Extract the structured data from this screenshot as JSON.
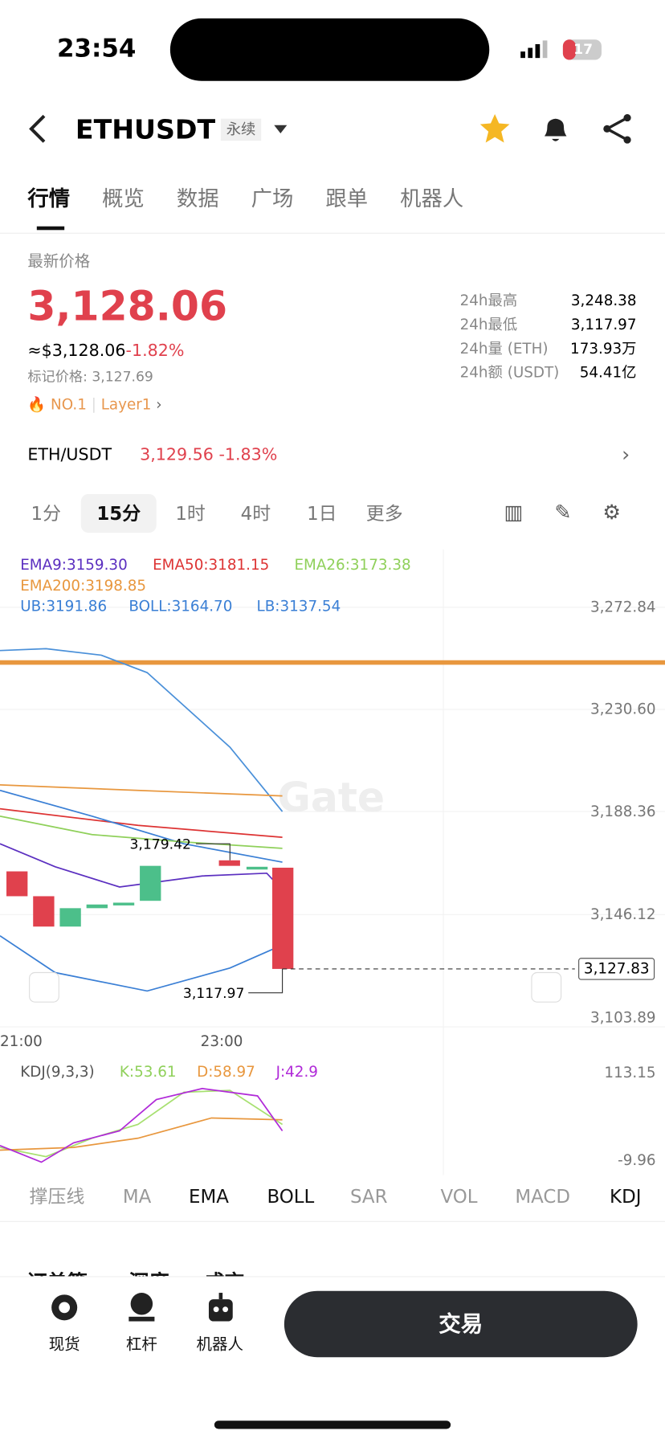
{
  "status": {
    "time": "23:54",
    "battery": "17"
  },
  "header": {
    "symbol": "ETHUSDT",
    "tag": "永续"
  },
  "tabs": [
    "行情",
    "概览",
    "数据",
    "广场",
    "跟单",
    "机器人"
  ],
  "price": {
    "label": "最新价格",
    "last": "3,128.06",
    "usd": "≈$3,128.06",
    "change": "-1.82%",
    "mark": "标记价格: 3,127.69",
    "rank": "NO.1",
    "sector": "Layer1"
  },
  "stats": [
    [
      "24h最高",
      "3,248.38"
    ],
    [
      "24h最低",
      "3,117.97"
    ],
    [
      "24h量 (ETH)",
      "173.93万"
    ],
    [
      "24h额 (USDT)",
      "54.41亿"
    ]
  ],
  "spot": {
    "pair": "ETH/USDT",
    "price": "3,129.56",
    "change": "-1.83%"
  },
  "intervals": [
    "1分",
    "15分",
    "1时",
    "4时",
    "1日",
    "更多"
  ],
  "chart": {
    "ema": [
      "EMA9:3159.30",
      "EMA50:3181.15",
      "EMA26:3173.38",
      "EMA200:3198.85"
    ],
    "boll": [
      "UB:3191.86",
      "BOLL:3164.70",
      "LB:3137.54"
    ],
    "yaxis": [
      "3,272.84",
      "3,230.60",
      "3,188.36",
      "3,146.12",
      "3,103.89"
    ],
    "current": "3,127.83",
    "high": "3,179.42",
    "low": "3,117.97",
    "xaxis": [
      "21:00",
      "23:00"
    ]
  },
  "kdj": {
    "labels": [
      "KDJ(9,3,3)",
      "K:53.61",
      "D:58.97",
      "J:42.9"
    ],
    "yaxis": [
      "113.15",
      "-9.96"
    ]
  },
  "indicator_tabs": [
    "撑压线",
    "MA",
    "EMA",
    "BOLL",
    "SAR",
    "VOL",
    "MACD",
    "KDJ"
  ],
  "book_tabs": [
    "订单簿",
    "深度",
    "成交"
  ],
  "bottom": {
    "items": [
      "现货",
      "杠杆",
      "机器人"
    ],
    "trade": "交易"
  }
}
